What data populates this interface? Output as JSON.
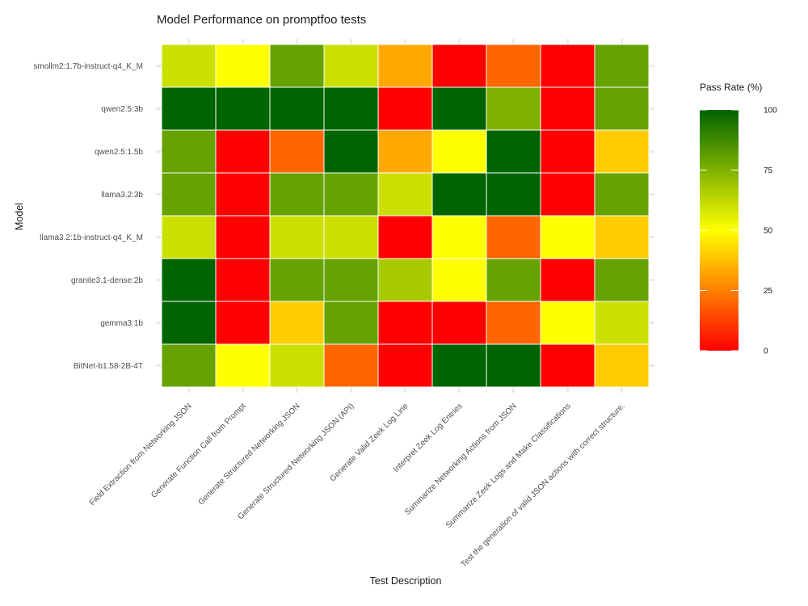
{
  "chart_data": {
    "type": "heatmap",
    "title": "Model Performance on promptfoo tests",
    "xlabel": "Test Description",
    "ylabel": "Model",
    "x_categories": [
      "Field Extraction from Networking JSON",
      "Generate Function Call from Prompt",
      "Generate Structured Networking JSON",
      "Generate Structured Networking JSON (API)",
      "Generate Valid Zeek Log Line",
      "Interpret Zeek Log Entries",
      "Summarize Networking Actions from JSON",
      "Summarize Zeek Logs and Make Classifications",
      "Test the generation of valid JSON actions with correct structure."
    ],
    "y_categories": [
      "smollm2:1.7b-instruct-q4_K_M",
      "qwen2.5:3b",
      "qwen2.5:1.5b",
      "llama3.2:3b",
      "llama3.2:1b-instruct-q4_K_M",
      "granite3.1-dense:2b",
      "gemma3:1b",
      "BitNet-b1.58-2B-4T"
    ],
    "values": [
      [
        60,
        50,
        80,
        60,
        33,
        0,
        20,
        0,
        80
      ],
      [
        100,
        100,
        100,
        100,
        0,
        100,
        75,
        0,
        80
      ],
      [
        80,
        0,
        20,
        100,
        33,
        50,
        100,
        0,
        40
      ],
      [
        80,
        0,
        80,
        80,
        60,
        100,
        100,
        0,
        80
      ],
      [
        60,
        0,
        60,
        60,
        0,
        50,
        20,
        50,
        40
      ],
      [
        100,
        0,
        80,
        80,
        67,
        50,
        80,
        0,
        80
      ],
      [
        100,
        0,
        40,
        80,
        0,
        0,
        20,
        50,
        60
      ],
      [
        80,
        50,
        60,
        20,
        0,
        100,
        100,
        0,
        40
      ]
    ],
    "color_scale": {
      "title": "Pass Rate (%)",
      "range": [
        0,
        100
      ],
      "ticks": [
        0,
        25,
        50,
        75,
        100
      ],
      "stops": [
        {
          "value": 0,
          "color": "#ff0000"
        },
        {
          "value": 50,
          "color": "#ffff00"
        },
        {
          "value": 100,
          "color": "#006400"
        }
      ]
    },
    "colors": {
      "background": "#ffffff",
      "grid": "#ebebeb",
      "tile_border": "#ffffff"
    }
  }
}
